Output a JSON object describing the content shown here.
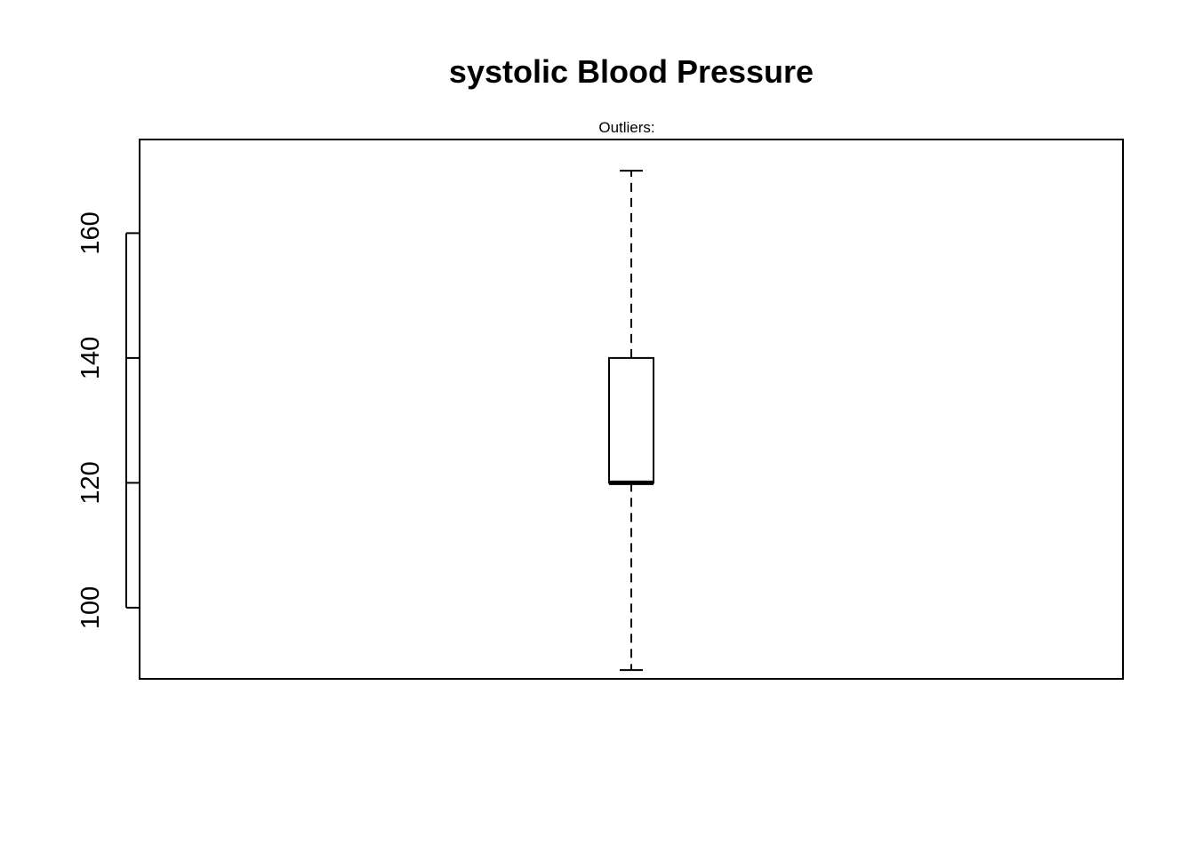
{
  "chart_data": {
    "type": "box",
    "title": "systolic Blood Pressure",
    "subtitle": "Outliers:",
    "xlabel": "",
    "ylabel": "",
    "ylim": [
      88.6,
      175
    ],
    "yticks": [
      100,
      120,
      140,
      160
    ],
    "series": [
      {
        "min": 90,
        "q1": 120,
        "median": 120,
        "q3": 140,
        "max": 170,
        "outliers": []
      }
    ],
    "grid": false,
    "colors": {
      "stroke": "#000000",
      "fill": "#ffffff"
    }
  }
}
